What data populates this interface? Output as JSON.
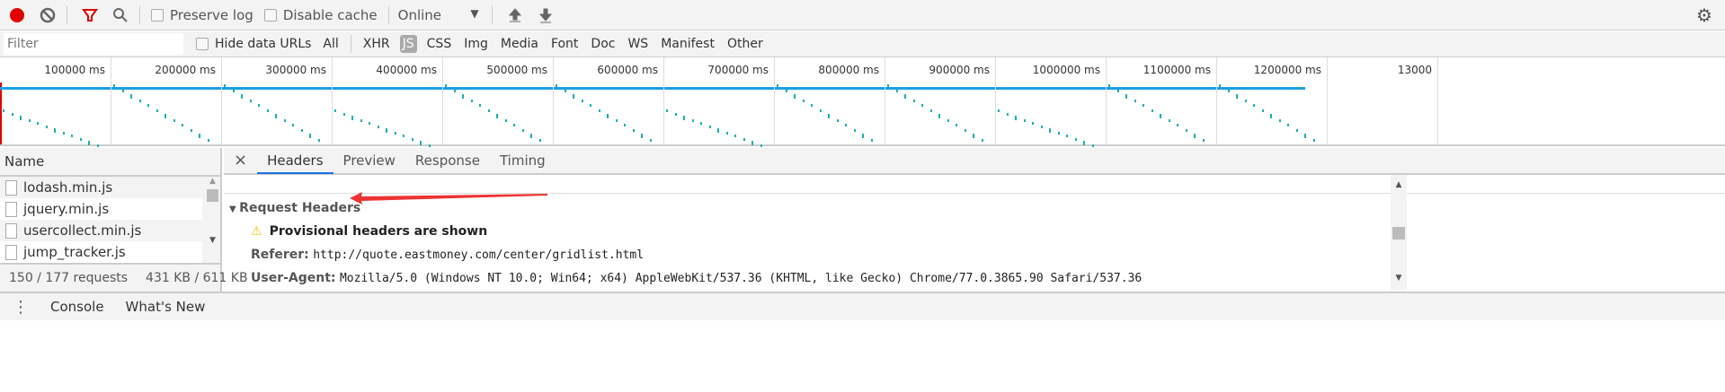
{
  "toolbar": {
    "preserve_log": "Preserve log",
    "disable_cache": "Disable cache",
    "throttle": "Online",
    "throttle_arrow": "▼"
  },
  "filterbar": {
    "placeholder": "Filter",
    "hide_data_urls": "Hide data URLs",
    "types": [
      "All",
      "XHR",
      "JS",
      "CSS",
      "Img",
      "Media",
      "Font",
      "Doc",
      "WS",
      "Manifest",
      "Other"
    ],
    "active_type": "JS"
  },
  "overview": {
    "ticks": [
      "100000 ms",
      "200000 ms",
      "300000 ms",
      "400000 ms",
      "500000 ms",
      "600000 ms",
      "700000 ms",
      "800000 ms",
      "900000 ms",
      "1000000 ms",
      "1100000 ms",
      "1200000 ms",
      "13000"
    ]
  },
  "requests": {
    "header": "Name",
    "items": [
      "lodash.min.js",
      "jquery.min.js",
      "usercollect.min.js",
      "jump_tracker.js"
    ],
    "status_count": "150 / 177 requests",
    "status_size": "431 KB / 611 KB"
  },
  "details": {
    "close": "×",
    "tabs": [
      "Headers",
      "Preview",
      "Response",
      "Timing"
    ],
    "active_tab": "Headers",
    "section": "Request Headers",
    "warning": "Provisional headers are shown",
    "headers": [
      {
        "key": "Referer:",
        "value": "http://quote.eastmoney.com/center/gridlist.html"
      },
      {
        "key": "User-Agent:",
        "value": "Mozilla/5.0 (Windows NT 10.0; Win64; x64) AppleWebKit/537.36 (KHTML, like Gecko) Chrome/77.0.3865.90 Safari/537.36"
      }
    ]
  },
  "drawer": {
    "tabs": [
      "Console",
      "What's New"
    ]
  },
  "colors": {
    "record": "#e00000",
    "filter": "#e00000",
    "accent": "#1a73e8",
    "timeline": "#1ba1e2",
    "dots": "#1bb0b0",
    "arrow": "#ee3333",
    "warning": "#f4c20d"
  }
}
